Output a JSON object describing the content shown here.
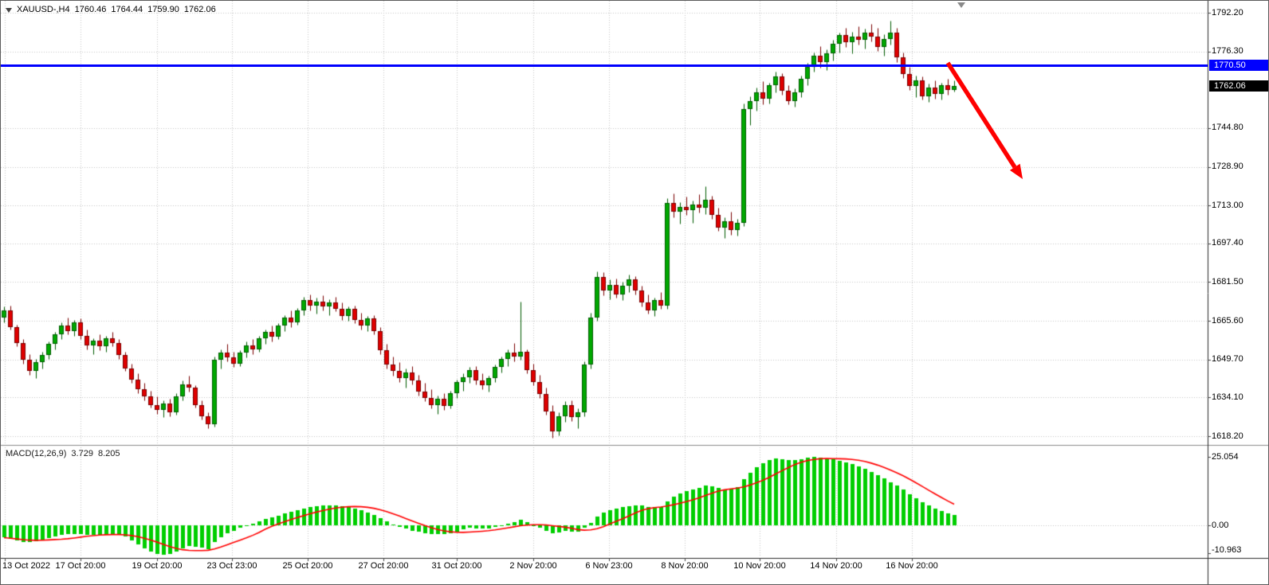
{
  "header": {
    "title": "XAUUSD-,H4",
    "open": "1760.46",
    "high": "1764.44",
    "low": "1759.90",
    "close": "1762.06"
  },
  "indicator": {
    "label": "MACD(12,26,9)",
    "macd_value": "3.729",
    "signal_value": "8.205",
    "axis_labels": [
      "25.054",
      "0.00",
      "-10.963"
    ]
  },
  "overlays": {
    "resistance_price_label": "1770.50",
    "current_price_label": "1762.06"
  },
  "colors": {
    "background": "#ffffff",
    "grid": "#c6c6c6",
    "pane_divider": "#8c8c8c",
    "axis_line": "#2b2b2b",
    "tick": "#444444",
    "resistance_blue": "#0000fe",
    "current_tag_bg": "#000000",
    "arrow_red": "#fe0000"
  },
  "chart_data": {
    "type": "candlestick",
    "symbol": "XAUUSD-",
    "timeframe": "H4",
    "current_bar": {
      "open": 1760.46,
      "high": 1764.44,
      "low": 1759.9,
      "close": 1762.06
    },
    "price_gridlines": [
      1792.2,
      1776.3,
      1744.8,
      1728.9,
      1713.0,
      1697.4,
      1681.5,
      1665.6,
      1649.7,
      1634.1,
      1618.2
    ],
    "time_labels": [
      "13 Oct 2022",
      "17 Oct 20:00",
      "19 Oct 20:00",
      "23 Oct 23:00",
      "25 Oct 20:00",
      "27 Oct 20:00",
      "31 Oct 20:00",
      "2 Nov 20:00",
      "6 Nov 23:00",
      "8 Nov 20:00",
      "10 Nov 20:00",
      "14 Nov 20:00",
      "16 Nov 20:00"
    ],
    "time_gridlines_x": [
      5,
      100,
      196,
      290,
      385,
      480,
      572,
      668,
      763,
      858,
      952,
      1048,
      1143
    ],
    "resistance_line": {
      "price": 1770.5,
      "color": "#0000fe"
    },
    "trend_arrow": {
      "direction": "down-right",
      "color": "#fe0000"
    },
    "candle_colors": {
      "up": "#00a800",
      "up_border": "#005c00",
      "down": "#e00000",
      "down_border": "#7a0000"
    },
    "candles": [
      [
        1667,
        1671.5,
        1665,
        1670
      ],
      [
        1670,
        1672,
        1662,
        1663
      ],
      [
        1663,
        1664,
        1655,
        1656.5
      ],
      [
        1656.5,
        1658,
        1648,
        1649.5
      ],
      [
        1649.5,
        1652,
        1643.5,
        1645
      ],
      [
        1645,
        1650,
        1642,
        1648.5
      ],
      [
        1648.5,
        1653,
        1646,
        1651.5
      ],
      [
        1651.5,
        1657,
        1650,
        1656
      ],
      [
        1656,
        1661,
        1654,
        1660
      ],
      [
        1660,
        1665,
        1658,
        1663.5
      ],
      [
        1663.5,
        1667,
        1660,
        1661.5
      ],
      [
        1661.5,
        1666,
        1659.5,
        1665
      ],
      [
        1665,
        1666.5,
        1658,
        1659.5
      ],
      [
        1659.5,
        1662,
        1654,
        1655.5
      ],
      [
        1655.5,
        1658.5,
        1652,
        1657.5
      ],
      [
        1657.5,
        1660,
        1653.5,
        1655
      ],
      [
        1655,
        1659.5,
        1653,
        1658.5
      ],
      [
        1658.5,
        1661,
        1655,
        1656.5
      ],
      [
        1656.5,
        1658,
        1650,
        1651.5
      ],
      [
        1651.5,
        1653,
        1645,
        1646
      ],
      [
        1646,
        1648,
        1640,
        1641.5
      ],
      [
        1641.5,
        1644,
        1636,
        1637.5
      ],
      [
        1637.5,
        1640,
        1633,
        1634.5
      ],
      [
        1634.5,
        1637,
        1630,
        1631
      ],
      [
        1631,
        1634.5,
        1627.5,
        1629
      ],
      [
        1629,
        1633,
        1626,
        1631.5
      ],
      [
        1631.5,
        1633.5,
        1626.5,
        1628
      ],
      [
        1628,
        1636,
        1627,
        1634.5
      ],
      [
        1634.5,
        1641,
        1633,
        1639.5
      ],
      [
        1639.5,
        1643,
        1636.5,
        1638
      ],
      [
        1638,
        1639,
        1630,
        1631
      ],
      [
        1631,
        1633,
        1625,
        1626.5
      ],
      [
        1626.5,
        1628,
        1621.5,
        1623
      ],
      [
        1623,
        1651,
        1622,
        1649.5
      ],
      [
        1649.5,
        1654,
        1646,
        1652.5
      ],
      [
        1652.5,
        1656,
        1649,
        1650.5
      ],
      [
        1650.5,
        1653,
        1646.5,
        1648
      ],
      [
        1648,
        1653.5,
        1647,
        1652.5
      ],
      [
        1652.5,
        1657,
        1650.5,
        1655.5
      ],
      [
        1655.5,
        1658,
        1652,
        1654
      ],
      [
        1654,
        1659.5,
        1653,
        1658.5
      ],
      [
        1658.5,
        1662,
        1656,
        1661
      ],
      [
        1661,
        1663.5,
        1657,
        1659
      ],
      [
        1659,
        1664.5,
        1658,
        1663.5
      ],
      [
        1663.5,
        1668,
        1661.5,
        1667
      ],
      [
        1667,
        1670,
        1663,
        1665
      ],
      [
        1665,
        1671,
        1664,
        1670
      ],
      [
        1670,
        1675.5,
        1668,
        1674
      ],
      [
        1674,
        1676.5,
        1670,
        1672
      ],
      [
        1672,
        1675,
        1668.5,
        1673.5
      ],
      [
        1673.5,
        1676,
        1670,
        1671.5
      ],
      [
        1671.5,
        1674.5,
        1668,
        1673
      ],
      [
        1673,
        1675.5,
        1669.5,
        1670.5
      ],
      [
        1670.5,
        1673,
        1666,
        1667.5
      ],
      [
        1667.5,
        1671.5,
        1665.5,
        1670.5
      ],
      [
        1670.5,
        1672,
        1664.5,
        1666
      ],
      [
        1666,
        1669,
        1662,
        1663.5
      ],
      [
        1663.5,
        1667.5,
        1661.5,
        1666.5
      ],
      [
        1666.5,
        1668,
        1660,
        1661.5
      ],
      [
        1661.5,
        1663,
        1652,
        1653.5
      ],
      [
        1653.5,
        1656,
        1646,
        1647.5
      ],
      [
        1647.5,
        1651,
        1643,
        1645
      ],
      [
        1645,
        1648.5,
        1640.5,
        1642
      ],
      [
        1642,
        1646,
        1638,
        1644.5
      ],
      [
        1644.5,
        1647,
        1639.5,
        1641
      ],
      [
        1641,
        1643.5,
        1635,
        1636.5
      ],
      [
        1636.5,
        1640,
        1632.5,
        1634
      ],
      [
        1634,
        1637.5,
        1629.5,
        1631
      ],
      [
        1631,
        1635,
        1627.5,
        1633.5
      ],
      [
        1633.5,
        1636,
        1629,
        1630.5
      ],
      [
        1630.5,
        1637,
        1629.5,
        1636
      ],
      [
        1636,
        1641.5,
        1634,
        1640.5
      ],
      [
        1640.5,
        1644,
        1637,
        1642.5
      ],
      [
        1642.5,
        1646.5,
        1640,
        1645.5
      ],
      [
        1645.5,
        1647,
        1639.5,
        1641
      ],
      [
        1641,
        1644,
        1637.5,
        1639
      ],
      [
        1639,
        1643,
        1636.5,
        1642
      ],
      [
        1642,
        1647.5,
        1640.5,
        1646.5
      ],
      [
        1646.5,
        1651,
        1644.5,
        1650
      ],
      [
        1650,
        1654,
        1647,
        1652.5
      ],
      [
        1652.5,
        1656.5,
        1649,
        1651
      ],
      [
        1651,
        1673.5,
        1649.5,
        1653
      ],
      [
        1653,
        1654,
        1644,
        1645.5
      ],
      [
        1645.5,
        1648,
        1639,
        1640.5
      ],
      [
        1640.5,
        1643.5,
        1634,
        1635.5
      ],
      [
        1635.5,
        1638,
        1627,
        1628.5
      ],
      [
        1628.5,
        1631,
        1617.5,
        1620
      ],
      [
        1620,
        1628,
        1618.5,
        1626.5
      ],
      [
        1626.5,
        1632.5,
        1624,
        1631
      ],
      [
        1631,
        1633,
        1624.5,
        1626
      ],
      [
        1626,
        1629.5,
        1621.5,
        1628
      ],
      [
        1628,
        1649,
        1626.5,
        1647.5
      ],
      [
        1647.5,
        1669,
        1646,
        1667
      ],
      [
        1667,
        1686,
        1665.5,
        1683.5
      ],
      [
        1683.5,
        1685.5,
        1676,
        1678
      ],
      [
        1678,
        1682.5,
        1674.5,
        1680.5
      ],
      [
        1680.5,
        1683,
        1675,
        1676.5
      ],
      [
        1676.5,
        1681.5,
        1674,
        1680
      ],
      [
        1680,
        1684.5,
        1677.5,
        1682.5
      ],
      [
        1682.5,
        1684,
        1676.5,
        1678
      ],
      [
        1678,
        1680,
        1671.5,
        1673
      ],
      [
        1673,
        1676.5,
        1668.5,
        1670
      ],
      [
        1670,
        1675,
        1667.5,
        1674
      ],
      [
        1674,
        1677.5,
        1670.5,
        1672
      ],
      [
        1672,
        1716,
        1670.5,
        1714
      ],
      [
        1714,
        1718,
        1708,
        1710.5
      ],
      [
        1710.5,
        1714.5,
        1705.5,
        1712.5
      ],
      [
        1712.5,
        1716.5,
        1709,
        1711
      ],
      [
        1711,
        1715,
        1706,
        1713.5
      ],
      [
        1713.5,
        1717.5,
        1710,
        1712
      ],
      [
        1712,
        1721,
        1709.5,
        1715.5
      ],
      [
        1715.5,
        1717,
        1707.5,
        1709
      ],
      [
        1709,
        1712,
        1702.5,
        1704
      ],
      [
        1704,
        1708,
        1699.5,
        1706.5
      ],
      [
        1706.5,
        1710.5,
        1701,
        1703
      ],
      [
        1703,
        1707.5,
        1700.5,
        1706
      ],
      [
        1706,
        1755,
        1704.5,
        1752.5
      ],
      [
        1752.5,
        1758,
        1746,
        1756
      ],
      [
        1756,
        1761.5,
        1752,
        1759.5
      ],
      [
        1759.5,
        1764,
        1754.5,
        1757
      ],
      [
        1757,
        1763.5,
        1755,
        1762.5
      ],
      [
        1762.5,
        1768,
        1759.5,
        1766
      ],
      [
        1766,
        1767.5,
        1758.5,
        1760
      ],
      [
        1760,
        1762.5,
        1754.5,
        1756
      ],
      [
        1756,
        1761,
        1753.5,
        1759.5
      ],
      [
        1759.5,
        1766.5,
        1757.5,
        1765
      ],
      [
        1765,
        1771.5,
        1762.5,
        1770
      ],
      [
        1770,
        1776,
        1768,
        1774.5
      ],
      [
        1774.5,
        1778.5,
        1769.5,
        1772
      ],
      [
        1772,
        1777,
        1768.5,
        1775.5
      ],
      [
        1775.5,
        1781,
        1772.5,
        1779.5
      ],
      [
        1779.5,
        1784,
        1776,
        1783
      ],
      [
        1783,
        1786,
        1778,
        1780
      ],
      [
        1780,
        1784.5,
        1775.5,
        1782.5
      ],
      [
        1782.5,
        1786.5,
        1779,
        1781
      ],
      [
        1781,
        1785.5,
        1777.5,
        1784
      ],
      [
        1784,
        1787.5,
        1780.5,
        1782.5
      ],
      [
        1782.5,
        1786,
        1776.5,
        1778
      ],
      [
        1778,
        1783.5,
        1774.5,
        1781.5
      ],
      [
        1781.5,
        1789,
        1779,
        1784
      ],
      [
        1784,
        1786,
        1772,
        1774
      ],
      [
        1774,
        1776,
        1765.5,
        1767
      ],
      [
        1767,
        1770,
        1760.5,
        1762
      ],
      [
        1762,
        1766.5,
        1757.5,
        1764.5
      ],
      [
        1764.5,
        1766,
        1756.5,
        1758
      ],
      [
        1758,
        1763,
        1755.5,
        1761.5
      ],
      [
        1761.5,
        1764.5,
        1757,
        1759
      ],
      [
        1759,
        1763.5,
        1756.5,
        1762.5
      ],
      [
        1762.5,
        1765,
        1758.5,
        1760.5
      ],
      [
        1760.46,
        1764.44,
        1759.9,
        1762.06
      ]
    ],
    "macd": {
      "label": "MACD(12,26,9)",
      "current_macd": 3.729,
      "current_signal": 8.205,
      "scale_max": 25.054,
      "scale_min": -10.963,
      "signal_period": 9,
      "histogram_color": "#00ce00",
      "signal_color": "#ff0000",
      "histogram": [
        -4.5,
        -5.0,
        -5.5,
        -6.0,
        -6.2,
        -5.8,
        -5.2,
        -4.6,
        -4.0,
        -3.6,
        -3.3,
        -3.1,
        -3.2,
        -3.4,
        -3.5,
        -3.6,
        -3.4,
        -3.3,
        -3.6,
        -4.2,
        -5.5,
        -7.0,
        -8.4,
        -9.6,
        -10.4,
        -10.9,
        -10.6,
        -9.6,
        -8.4,
        -7.6,
        -7.9,
        -8.3,
        -8.6,
        -6.2,
        -4.4,
        -3.0,
        -2.0,
        -1.0,
        -0.2,
        0.6,
        1.4,
        2.2,
        2.9,
        3.6,
        4.3,
        5.0,
        5.6,
        6.2,
        6.7,
        7.1,
        7.3,
        7.4,
        7.3,
        7.1,
        6.7,
        6.2,
        5.5,
        4.7,
        3.8,
        2.6,
        1.4,
        0.3,
        -0.6,
        -1.3,
        -1.9,
        -2.4,
        -2.8,
        -3.1,
        -3.3,
        -3.2,
        -2.8,
        -2.2,
        -1.6,
        -1.0,
        -1.1,
        -1.3,
        -1.2,
        -0.6,
        0.0,
        0.6,
        1.2,
        1.9,
        1.1,
        0.1,
        -1.0,
        -2.1,
        -3.0,
        -2.5,
        -2.0,
        -2.2,
        -2.4,
        -1.0,
        1.0,
        3.2,
        4.6,
        5.6,
        6.2,
        6.7,
        7.1,
        7.4,
        7.2,
        6.8,
        6.6,
        6.8,
        8.8,
        10.4,
        11.6,
        12.5,
        13.2,
        13.8,
        14.5,
        14.2,
        13.6,
        13.2,
        13.4,
        14.0,
        16.8,
        19.2,
        21.2,
        22.8,
        23.8,
        24.5,
        24.2,
        23.8,
        23.9,
        24.3,
        24.8,
        25.054,
        24.9,
        24.6,
        24.2,
        23.7,
        23.1,
        22.4,
        21.6,
        20.7,
        19.6,
        18.4,
        17.1,
        15.8,
        14.5,
        13.0,
        11.4,
        9.9,
        8.5,
        7.2,
        6.1,
        5.2,
        4.4,
        3.729
      ]
    }
  }
}
